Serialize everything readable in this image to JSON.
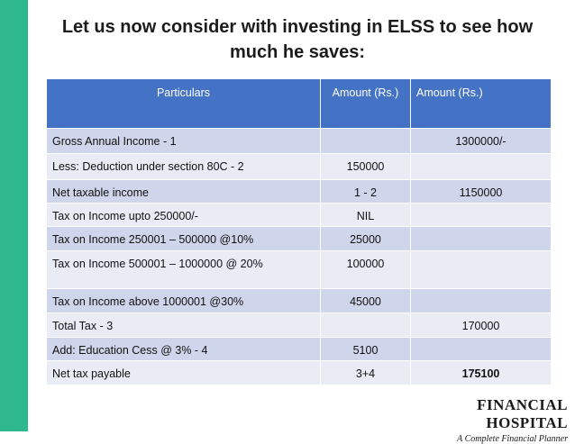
{
  "title": "Let us now consider with investing in ELSS to see how much he saves:",
  "table": {
    "header": [
      "Particulars",
      "Amount (Rs.)",
      "Amount (Rs.)"
    ],
    "rows": [
      [
        "Gross Annual Income - 1",
        null,
        "1300000/-"
      ],
      [
        "Less: Deduction under section 80C - 2",
        "150000",
        null
      ],
      [
        "Net taxable income",
        "1 - 2",
        "1150000"
      ],
      [
        "Tax on Income upto 250000/-",
        "NIL",
        null
      ],
      [
        "Tax on Income 250001 – 500000 @10%",
        "25000",
        null
      ],
      [
        "Tax on Income 500001 – 1000000 @ 20%",
        "100000",
        null
      ],
      [
        "Tax on Income above 1000001 @30%",
        "45000",
        null
      ],
      [
        "Total Tax - 3",
        null,
        "170000"
      ],
      [
        "Add: Education Cess @ 3% - 4",
        "5100",
        null
      ],
      [
        "Net tax payable",
        "3+4",
        "175100"
      ]
    ]
  },
  "logo": {
    "name": "FINANCIAL HOSPITAL",
    "tagline": "A Complete Financial Planner"
  }
}
